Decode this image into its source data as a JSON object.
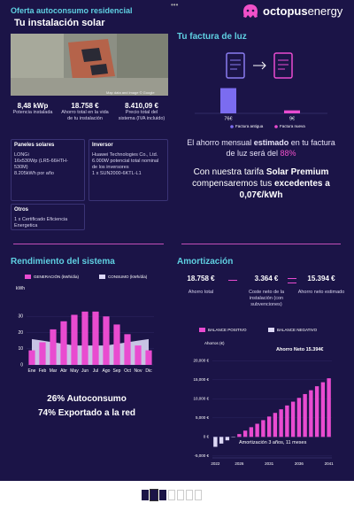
{
  "header": {
    "subtitle": "Oferta autoconsumo residencial",
    "title": "Tu instalación solar",
    "brand": "octopus",
    "brand_suffix": "energy"
  },
  "installation": {
    "image_caption": "Map data and image © Google",
    "stats": [
      {
        "value": "8,48 kWp",
        "label": "Potencia instalada"
      },
      {
        "value": "18.758 €",
        "label": "Ahorro total en la vida de tu instalación"
      },
      {
        "value": "8.410,09 €",
        "label": "Precio total del sistema (IVA incluido)"
      }
    ],
    "boxes": [
      {
        "title": "Paneles solares",
        "lines": [
          "LONGi",
          "16x530Wp (LR5-66HTH-530M)",
          "8.205kWh por año"
        ]
      },
      {
        "title": "Inversor",
        "lines": [
          "Huawei Technologies Co., Ltd.",
          "6.000W potencial total nominal de los inversores",
          "1 x SUN2000-6KTL-L1"
        ]
      },
      {
        "title": "Otros",
        "lines": [
          "1 x Certificado Eficiencia Energetica"
        ]
      }
    ]
  },
  "bill": {
    "title": "Tu factura de luz",
    "savings": [
      "El ahorro mensual ",
      "estimado",
      " en tu factura de luz será del ",
      "88%"
    ],
    "tariff": [
      "Con nuestra tarifa ",
      "Solar Premium",
      " compensaremos tus ",
      "excedentes a 0,07€/kWh"
    ]
  },
  "performance": {
    "title": "Rendimiento del sistema",
    "highlights": [
      "26% Autoconsumo",
      "74% Exportado a la red"
    ]
  },
  "amortization": {
    "title": "Amortización",
    "summary": [
      {
        "value": "18.758 €",
        "label": "Ahorro total"
      },
      {
        "value": "3.364 €",
        "label": "Coste neto de la instalación (con subvenciones)"
      },
      {
        "value": "15.394 €",
        "label": "Ahorro neto estimado"
      }
    ]
  },
  "chart_data": [
    {
      "type": "bar",
      "ylim": [
        0,
        80
      ],
      "series": [
        {
          "name": "Factura antigua",
          "color": "#7b6cf0",
          "values": [
            76
          ],
          "value_labels": [
            "76€"
          ]
        },
        {
          "name": "Factura nueva",
          "color": "#e94bd0",
          "values": [
            9
          ],
          "value_labels": [
            "9€"
          ]
        }
      ]
    },
    {
      "type": "bar",
      "y_label": "kWh",
      "categories": [
        "Ene",
        "Feb",
        "Mar",
        "Abr",
        "May",
        "Jun",
        "Jul",
        "Ago",
        "Sep",
        "Oct",
        "Nov",
        "Dic"
      ],
      "ylim": [
        0,
        34
      ],
      "yticks": [
        0,
        10,
        20,
        30
      ],
      "series": [
        {
          "name": "GENERACIÓN (kWh/día)",
          "color": "#e94bd0",
          "kind": "bar",
          "values": [
            9,
            14,
            22,
            27,
            31,
            33,
            33,
            30,
            25,
            19,
            12,
            9
          ]
        },
        {
          "name": "CONSUMO (kWh/día)",
          "color": "#dcd7f5",
          "kind": "area",
          "values": [
            16,
            15,
            14,
            13,
            12,
            12,
            12,
            12,
            13,
            14,
            15,
            16
          ]
        }
      ]
    },
    {
      "type": "bar",
      "y_label": "Ahorros (€)",
      "categories": [
        "2022",
        null,
        null,
        null,
        "2026",
        null,
        null,
        null,
        null,
        "2031",
        null,
        null,
        null,
        null,
        "2036",
        null,
        null,
        null,
        null,
        "2041"
      ],
      "ylim": [
        -5500,
        21000
      ],
      "yticks": [
        {
          "value": 20000,
          "label": "20,000 €"
        },
        {
          "value": 15000,
          "label": "15,000 €"
        },
        {
          "value": 10000,
          "label": "10,000 €"
        },
        {
          "value": 5000,
          "label": "5,000 €"
        },
        {
          "value": 0,
          "label": "0 €"
        },
        {
          "value": -5000,
          "label": "-5,000 €"
        }
      ],
      "annotations": [
        "Ahorro Neto 15.394€",
        "Amortización 3 años, 11 meses"
      ],
      "series": [
        {
          "name": "BALANCE POSITIVO",
          "color": "#e94bd0",
          "values": [
            null,
            null,
            null,
            null,
            750,
            1650,
            2550,
            3450,
            4400,
            5350,
            6300,
            7250,
            8250,
            9250,
            10250,
            11250,
            12250,
            13300,
            14350,
            15394
          ]
        },
        {
          "name": "BALANCE NEGATIVO",
          "color": "#dcd7f5",
          "values": [
            -2600,
            -1750,
            -900,
            -100,
            null,
            null,
            null,
            null,
            null,
            null,
            null,
            null,
            null,
            null,
            null,
            null,
            null,
            null,
            null,
            null
          ]
        }
      ]
    }
  ]
}
